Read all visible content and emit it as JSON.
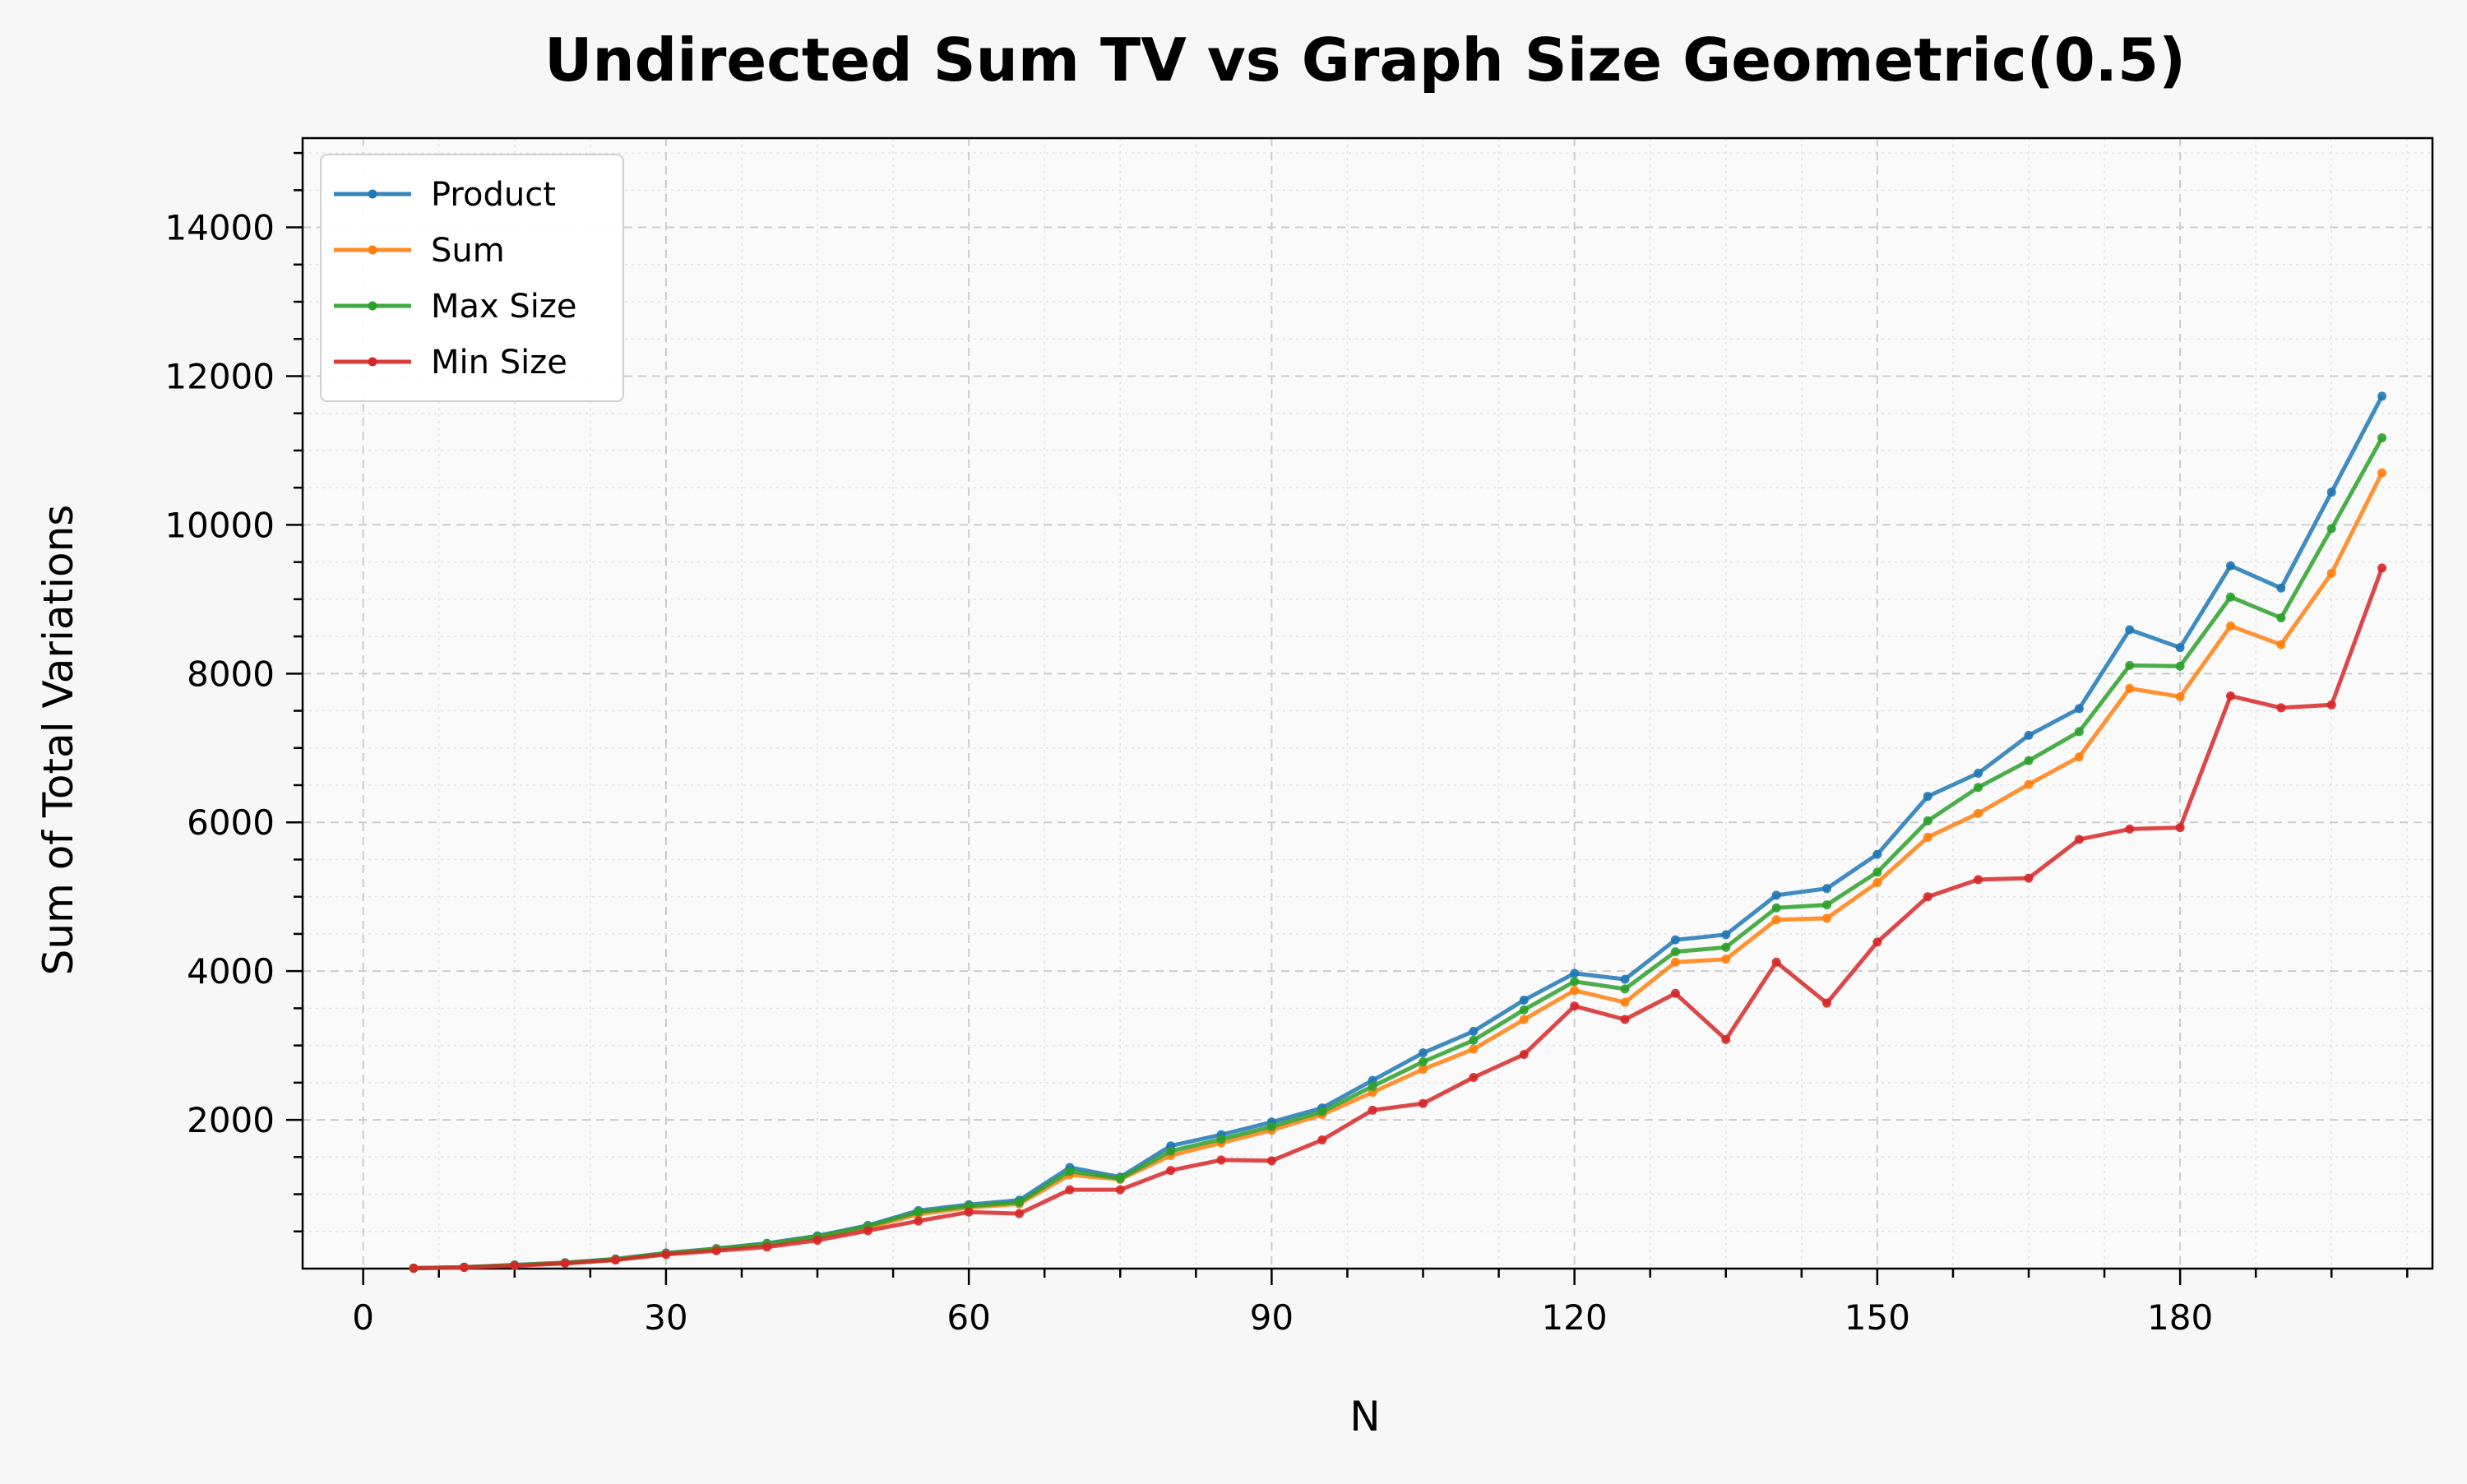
{
  "chart_data": {
    "type": "line",
    "title": "Undirected Sum TV vs Graph Size Geometric(0.5)",
    "xlabel": "N",
    "ylabel": "Sum of Total Variations",
    "xlim": [
      -6,
      205
    ],
    "ylim": [
      0,
      15200
    ],
    "xticks": [
      0,
      30,
      60,
      90,
      120,
      150,
      180
    ],
    "xticks_minor_step": 7.5,
    "yticks": [
      2000,
      4000,
      6000,
      8000,
      10000,
      12000,
      14000
    ],
    "yticks_minor_step": 500,
    "grid": true,
    "legend_position": "top-left",
    "x": [
      5,
      10,
      15,
      20,
      25,
      30,
      35,
      40,
      45,
      50,
      55,
      60,
      65,
      70,
      75,
      80,
      85,
      90,
      95,
      100,
      105,
      110,
      115,
      120,
      125,
      130,
      135,
      140,
      145,
      150,
      155,
      160,
      165,
      170,
      175,
      180,
      185,
      190,
      195,
      200
    ],
    "series": [
      {
        "name": "Product",
        "color": "#1f77b4",
        "values": [
          5,
          20,
          50,
          80,
          130,
          210,
          270,
          340,
          440,
          580,
          780,
          860,
          920,
          1360,
          1230,
          1650,
          1800,
          1970,
          2160,
          2530,
          2900,
          3190,
          3610,
          3970,
          3890,
          4420,
          4490,
          5020,
          5110,
          5570,
          6350,
          6660,
          7170,
          7530,
          8590,
          8350,
          9450,
          9150,
          10440,
          11730
        ]
      },
      {
        "name": "Sum",
        "color": "#ff7f0e",
        "values": [
          5,
          18,
          45,
          75,
          120,
          200,
          260,
          320,
          420,
          550,
          730,
          820,
          870,
          1260,
          1200,
          1520,
          1690,
          1860,
          2070,
          2370,
          2680,
          2950,
          3350,
          3740,
          3580,
          4120,
          4160,
          4690,
          4710,
          5190,
          5800,
          6120,
          6510,
          6880,
          7800,
          7690,
          8640,
          8390,
          9350,
          10700
        ]
      },
      {
        "name": "Max Size",
        "color": "#2ca02c",
        "values": [
          5,
          19,
          48,
          78,
          125,
          205,
          265,
          330,
          430,
          570,
          760,
          840,
          890,
          1310,
          1210,
          1580,
          1740,
          1910,
          2110,
          2450,
          2780,
          3070,
          3480,
          3860,
          3760,
          4260,
          4320,
          4850,
          4890,
          5330,
          6020,
          6470,
          6830,
          7220,
          8110,
          8100,
          9030,
          8750,
          9950,
          11170
        ]
      },
      {
        "name": "Min Size",
        "color": "#d62728",
        "values": [
          4,
          15,
          40,
          70,
          115,
          190,
          240,
          290,
          380,
          510,
          640,
          760,
          740,
          1060,
          1060,
          1320,
          1460,
          1450,
          1730,
          2130,
          2220,
          2570,
          2880,
          3530,
          3350,
          3700,
          3080,
          4120,
          3570,
          4390,
          5000,
          5230,
          5250,
          5770,
          5910,
          5930,
          7700,
          7540,
          7580,
          9420
        ]
      }
    ]
  }
}
